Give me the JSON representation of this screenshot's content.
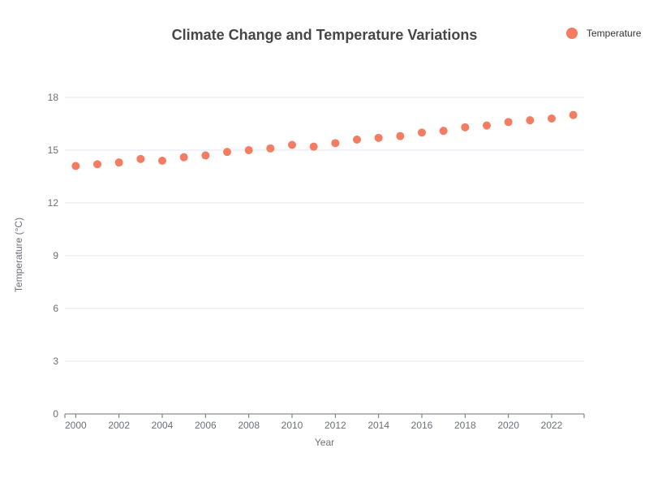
{
  "chart_data": {
    "type": "scatter",
    "title": "Climate Change and Temperature Variations",
    "xlabel": "Year",
    "ylabel": "Temperature (°C)",
    "xlim": [
      1999.5,
      2023.5
    ],
    "ylim": [
      0,
      18
    ],
    "x_ticks": [
      2000,
      2002,
      2004,
      2006,
      2008,
      2010,
      2012,
      2014,
      2016,
      2018,
      2020,
      2022
    ],
    "y_ticks": [
      0,
      3,
      6,
      9,
      12,
      15,
      18
    ],
    "grid": true,
    "legend_position": "top-right",
    "series": [
      {
        "name": "Temperature",
        "color": "#f47c60",
        "x": [
          2000,
          2001,
          2002,
          2003,
          2004,
          2005,
          2006,
          2007,
          2008,
          2009,
          2010,
          2011,
          2012,
          2013,
          2014,
          2015,
          2016,
          2017,
          2018,
          2019,
          2020,
          2021,
          2022,
          2023
        ],
        "y": [
          14.1,
          14.2,
          14.3,
          14.5,
          14.4,
          14.6,
          14.7,
          14.9,
          15.0,
          15.1,
          15.3,
          15.2,
          15.4,
          15.6,
          15.7,
          15.8,
          16.0,
          16.1,
          16.3,
          16.4,
          16.6,
          16.7,
          16.8,
          17.0
        ]
      }
    ]
  }
}
